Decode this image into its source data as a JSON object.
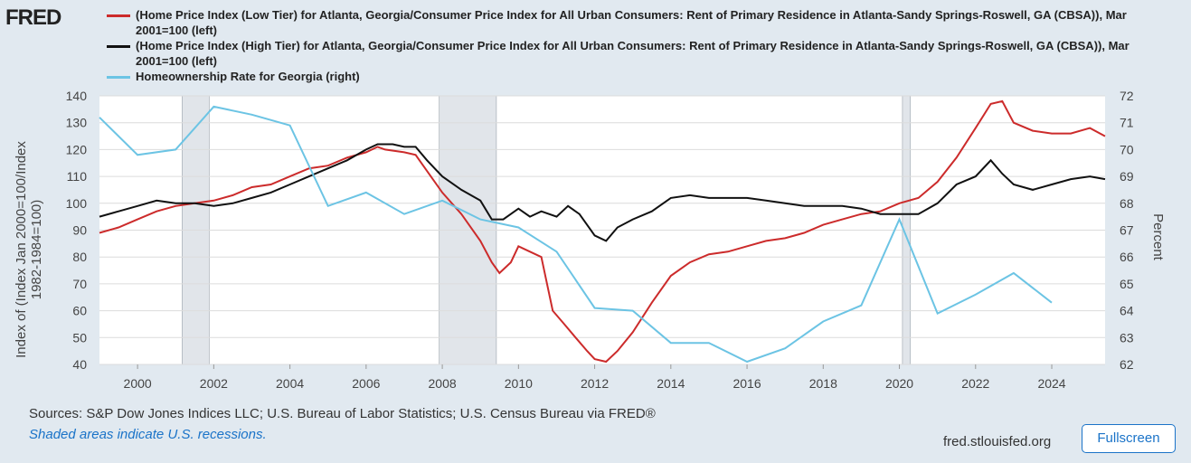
{
  "logo": "FRED",
  "chart_data": {
    "type": "line",
    "legend": [
      "(Home Price Index (Low Tier) for Atlanta, Georgia/Consumer Price Index for All Urban Consumers: Rent of Primary Residence in Atlanta-Sandy Springs-Roswell, GA (CBSA)), Mar 2001=100 (left)",
      "(Home Price Index (High Tier) for Atlanta, Georgia/Consumer Price Index for All Urban Consumers: Rent of Primary Residence in Atlanta-Sandy Springs-Roswell, GA (CBSA)), Mar 2001=100 (left)",
      "Homeownership Rate for Georgia (right)"
    ],
    "y_label": [
      "Index of (Index Jan 2000=100/Index",
      "1982-1984=100)"
    ],
    "y2_label": "Percent",
    "xlim": [
      1999.0,
      2025.4
    ],
    "xticks": [
      2000,
      2002,
      2004,
      2006,
      2008,
      2010,
      2012,
      2014,
      2016,
      2018,
      2020,
      2022,
      2024
    ],
    "ylim": [
      40,
      140
    ],
    "yticks": [
      40,
      50,
      60,
      70,
      80,
      90,
      100,
      110,
      120,
      130,
      140
    ],
    "y2lim": [
      62,
      72
    ],
    "y2ticks": [
      62,
      63,
      64,
      65,
      66,
      67,
      68,
      69,
      70,
      71,
      72
    ],
    "grid": true,
    "recessions": [
      [
        2001.17,
        2001.88
      ],
      [
        2007.92,
        2009.42
      ],
      [
        2020.08,
        2020.29
      ]
    ],
    "series": [
      {
        "name": "Low Tier",
        "color": "#cc2b2b",
        "x": [
          1999.0,
          1999.5,
          2000.0,
          2000.5,
          2001.0,
          2001.5,
          2002.0,
          2002.5,
          2003.0,
          2003.5,
          2004.0,
          2004.5,
          2005.0,
          2005.5,
          2006.0,
          2006.3,
          2006.5,
          2007.0,
          2007.3,
          2007.5,
          2008.0,
          2008.5,
          2009.0,
          2009.3,
          2009.5,
          2009.8,
          2010.0,
          2010.3,
          2010.6,
          2010.9,
          2011.2,
          2011.5,
          2011.8,
          2012.0,
          2012.3,
          2012.6,
          2013.0,
          2013.5,
          2014.0,
          2014.5,
          2015.0,
          2015.5,
          2016.0,
          2016.5,
          2017.0,
          2017.5,
          2018.0,
          2018.5,
          2019.0,
          2019.5,
          2020.0,
          2020.5,
          2021.0,
          2021.5,
          2022.0,
          2022.4,
          2022.7,
          2023.0,
          2023.5,
          2024.0,
          2024.5,
          2025.0,
          2025.4
        ],
        "values": [
          89,
          91,
          94,
          97,
          99,
          100,
          101,
          103,
          106,
          107,
          110,
          113,
          114,
          117,
          119,
          121,
          120,
          119,
          118,
          114,
          104,
          96,
          86,
          78,
          74,
          78,
          84,
          82,
          80,
          60,
          55,
          50,
          45,
          42,
          41,
          45,
          52,
          63,
          73,
          78,
          81,
          82,
          84,
          86,
          87,
          89,
          92,
          94,
          96,
          97,
          100,
          102,
          108,
          117,
          128,
          137,
          138,
          130,
          127,
          126,
          126,
          128,
          125
        ]
      },
      {
        "name": "High Tier",
        "color": "#111111",
        "x": [
          1999.0,
          1999.5,
          2000.0,
          2000.5,
          2001.0,
          2001.5,
          2002.0,
          2002.5,
          2003.0,
          2003.5,
          2004.0,
          2004.5,
          2005.0,
          2005.5,
          2006.0,
          2006.3,
          2006.7,
          2007.0,
          2007.3,
          2007.6,
          2008.0,
          2008.5,
          2009.0,
          2009.3,
          2009.6,
          2010.0,
          2010.3,
          2010.6,
          2011.0,
          2011.3,
          2011.6,
          2012.0,
          2012.3,
          2012.6,
          2013.0,
          2013.5,
          2014.0,
          2014.5,
          2015.0,
          2015.5,
          2016.0,
          2016.5,
          2017.0,
          2017.5,
          2018.0,
          2018.5,
          2019.0,
          2019.5,
          2020.0,
          2020.5,
          2021.0,
          2021.5,
          2022.0,
          2022.4,
          2022.7,
          2023.0,
          2023.5,
          2024.0,
          2024.5,
          2025.0,
          2025.4
        ],
        "values": [
          95,
          97,
          99,
          101,
          100,
          100,
          99,
          100,
          102,
          104,
          107,
          110,
          113,
          116,
          120,
          122,
          122,
          121,
          121,
          116,
          110,
          105,
          101,
          94,
          94,
          98,
          95,
          97,
          95,
          99,
          96,
          88,
          86,
          91,
          94,
          97,
          102,
          103,
          102,
          102,
          102,
          101,
          100,
          99,
          99,
          99,
          98,
          96,
          96,
          96,
          100,
          107,
          110,
          116,
          111,
          107,
          105,
          107,
          109,
          110,
          109
        ]
      },
      {
        "name": "Homeownership",
        "color": "#6cc4e4",
        "axis": "y2",
        "x": [
          1999,
          2000,
          2001,
          2002,
          2003,
          2004,
          2005,
          2006,
          2007,
          2008,
          2009,
          2010,
          2011,
          2012,
          2013,
          2014,
          2015,
          2016,
          2017,
          2018,
          2019,
          2020,
          2021,
          2022,
          2023,
          2024
        ],
        "values": [
          71.2,
          69.8,
          70.0,
          71.6,
          71.3,
          70.9,
          67.9,
          68.4,
          67.6,
          68.1,
          67.4,
          67.1,
          66.2,
          64.1,
          64.0,
          62.8,
          62.8,
          62.1,
          62.6,
          63.6,
          64.2,
          67.4,
          63.9,
          64.6,
          65.4,
          64.3
        ]
      }
    ]
  },
  "footer": {
    "sources": "Sources: S&P Dow Jones Indices LLC; U.S. Bureau of Labor Statistics; U.S. Census Bureau via FRED®",
    "note": "Shaded areas indicate U.S. recessions.",
    "site": "fred.stlouisfed.org",
    "button": "Fullscreen"
  }
}
